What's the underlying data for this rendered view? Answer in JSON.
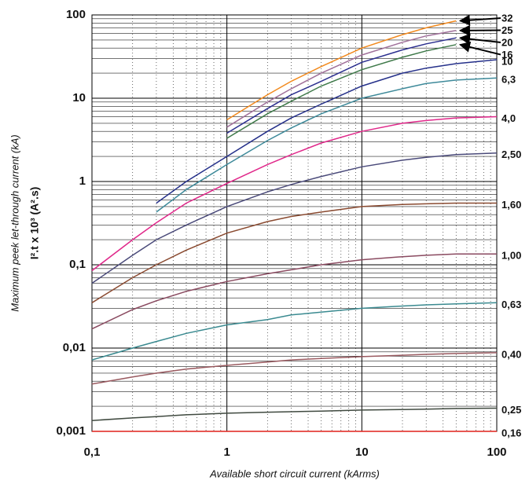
{
  "chart_data": {
    "type": "line",
    "x_label": "Available short circuit current (kArms)",
    "y_label": "Maximum peek let-through current (kA)",
    "y_label_2": "I².t x 10³ (A².s)",
    "log_scale": true,
    "grid": true,
    "x": [
      0.1,
      0.2,
      0.3,
      0.5,
      1,
      2,
      3,
      5,
      10,
      20,
      30,
      50,
      100
    ],
    "xlim": [
      0.1,
      100
    ],
    "xticks": [
      {
        "value": 0.1,
        "label": "0,1"
      },
      1,
      10,
      100
    ],
    "ylim": [
      0.001,
      100
    ],
    "yticks": [
      {
        "value": 0.001,
        "label": "0,001"
      },
      {
        "value": 0.01,
        "label": "0,01"
      },
      {
        "value": 0.1,
        "label": "0,1"
      },
      1,
      10,
      100
    ],
    "series": [
      {
        "name": "32",
        "color": "#f28a1e",
        "values": [
          null,
          null,
          null,
          null,
          5.5,
          11,
          16,
          24,
          40,
          58,
          70,
          85,
          null
        ]
      },
      {
        "name": "25",
        "color": "#a0709a",
        "values": [
          null,
          null,
          null,
          null,
          4.5,
          9,
          13,
          20,
          33,
          47,
          56,
          65,
          null
        ]
      },
      {
        "name": "20",
        "color": "#2b2f8f",
        "values": [
          null,
          null,
          null,
          null,
          3.8,
          7.5,
          11,
          16,
          27,
          38,
          45,
          53,
          null
        ]
      },
      {
        "name": "16",
        "color": "#3f7a4a",
        "values": [
          null,
          null,
          null,
          null,
          3.3,
          6.5,
          9.2,
          14,
          22,
          31,
          37,
          44,
          null
        ]
      },
      {
        "name": "10",
        "color": "#25308a",
        "values": [
          null,
          null,
          0.55,
          1.0,
          2.0,
          4.0,
          5.8,
          8.5,
          14,
          20,
          23,
          26,
          29
        ]
      },
      {
        "name": "6,3",
        "color": "#3e8a9a",
        "values": [
          null,
          null,
          0.43,
          0.8,
          1.6,
          3.1,
          4.4,
          6.5,
          10,
          13,
          15,
          16.5,
          17.5
        ]
      },
      {
        "name": "4,0",
        "color": "#e0288a",
        "values": [
          0.085,
          0.2,
          0.32,
          0.55,
          0.95,
          1.6,
          2.1,
          2.9,
          4.0,
          5.0,
          5.4,
          5.8,
          6.0
        ]
      },
      {
        "name": "2,50",
        "color": "#4a4a7a",
        "values": [
          0.06,
          0.13,
          0.2,
          0.3,
          0.5,
          0.75,
          0.92,
          1.15,
          1.5,
          1.8,
          1.95,
          2.1,
          2.2
        ]
      },
      {
        "name": "1,60",
        "color": "#8a4a30",
        "values": [
          0.035,
          0.07,
          0.1,
          0.15,
          0.24,
          0.33,
          0.38,
          0.43,
          0.5,
          0.53,
          0.54,
          0.55,
          0.55
        ]
      },
      {
        "name": "1,00",
        "color": "#8a4a60",
        "values": [
          0.017,
          0.029,
          0.037,
          0.048,
          0.063,
          0.078,
          0.087,
          0.1,
          0.115,
          0.125,
          0.13,
          0.135,
          0.135
        ]
      },
      {
        "name": "0,63",
        "color": "#3a8a90",
        "values": [
          0.0072,
          0.01,
          0.012,
          0.015,
          0.019,
          0.022,
          0.025,
          0.027,
          0.03,
          0.032,
          0.033,
          0.034,
          0.035
        ]
      },
      {
        "name": "0,40",
        "color": "#9a5a60",
        "values": [
          0.0037,
          0.0045,
          0.005,
          0.0056,
          0.0062,
          0.0068,
          0.0072,
          0.0075,
          0.0079,
          0.0082,
          0.0084,
          0.0086,
          0.0088
        ]
      },
      {
        "name": "0,25",
        "color": "#404a40",
        "values": [
          0.00135,
          0.00145,
          0.0015,
          0.00158,
          0.00165,
          0.0017,
          0.00172,
          0.00175,
          0.0018,
          0.00183,
          0.00185,
          0.00188,
          0.0019
        ]
      },
      {
        "name": "0,16",
        "color": "#e0201a",
        "values": [
          0.001,
          0.001,
          0.001,
          0.001,
          0.001,
          0.001,
          0.001,
          0.001,
          0.001,
          0.001,
          0.001,
          0.001,
          0.001
        ]
      }
    ]
  }
}
